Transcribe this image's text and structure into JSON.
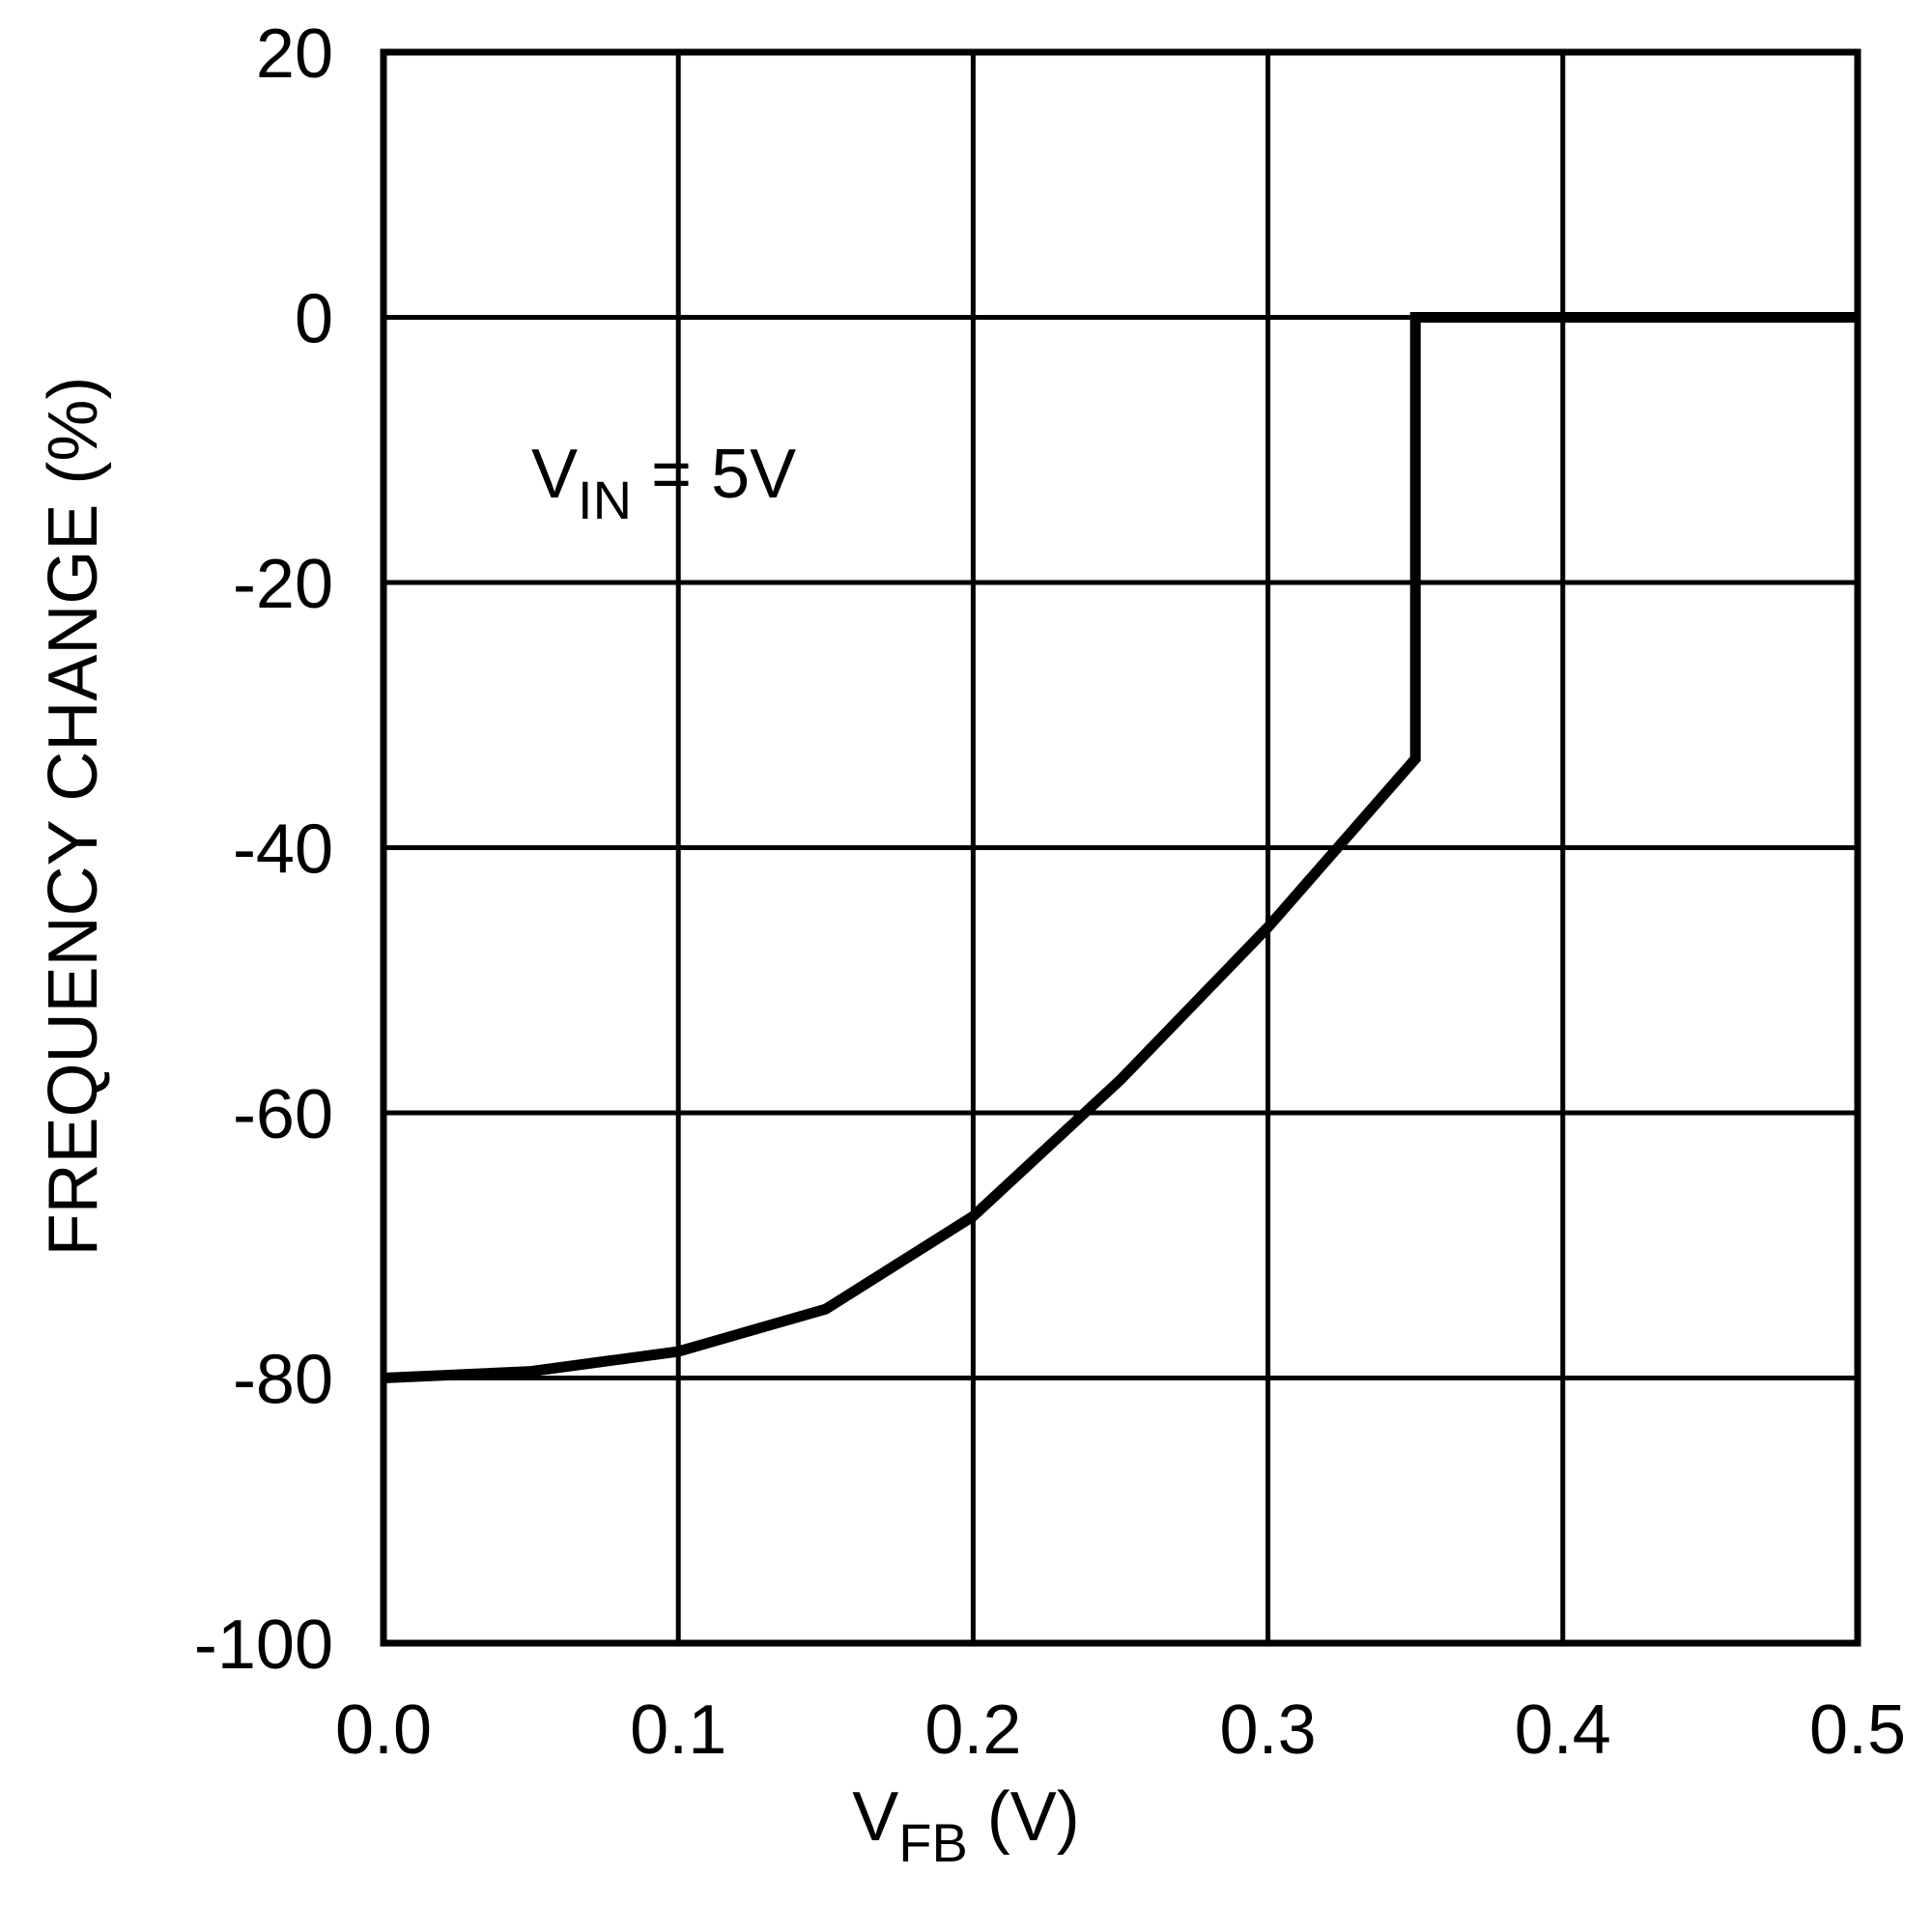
{
  "chart_data": {
    "type": "line",
    "title": "",
    "xlabel": {
      "main": "V",
      "sub": "FB",
      "unit": " (V)"
    },
    "ylabel": "FREQUENCY CHANGE (%)",
    "xlim": [
      0.0,
      0.5
    ],
    "ylim": [
      -100,
      20
    ],
    "xticks": [
      0.0,
      0.1,
      0.2,
      0.3,
      0.4,
      0.5
    ],
    "xtick_labels": [
      "0.0",
      "0.1",
      "0.2",
      "0.3",
      "0.4",
      "0.5"
    ],
    "yticks": [
      20,
      0,
      -20,
      -40,
      -60,
      -80,
      -100
    ],
    "ytick_labels": [
      "20",
      "0",
      "-20",
      "-40",
      "-60",
      "-80",
      "-100"
    ],
    "grid": true,
    "annotation": {
      "main": "V",
      "sub": "IN",
      "rest": " = 5V"
    },
    "series": [
      {
        "color": "#000000",
        "x": [
          0.0,
          0.05,
          0.1,
          0.15,
          0.2,
          0.25,
          0.3,
          0.35,
          0.35,
          0.5
        ],
        "y": [
          -80,
          -79.5,
          -78,
          -74.8,
          -67.8,
          -57.5,
          -46,
          -33.3,
          0,
          0
        ]
      }
    ]
  }
}
